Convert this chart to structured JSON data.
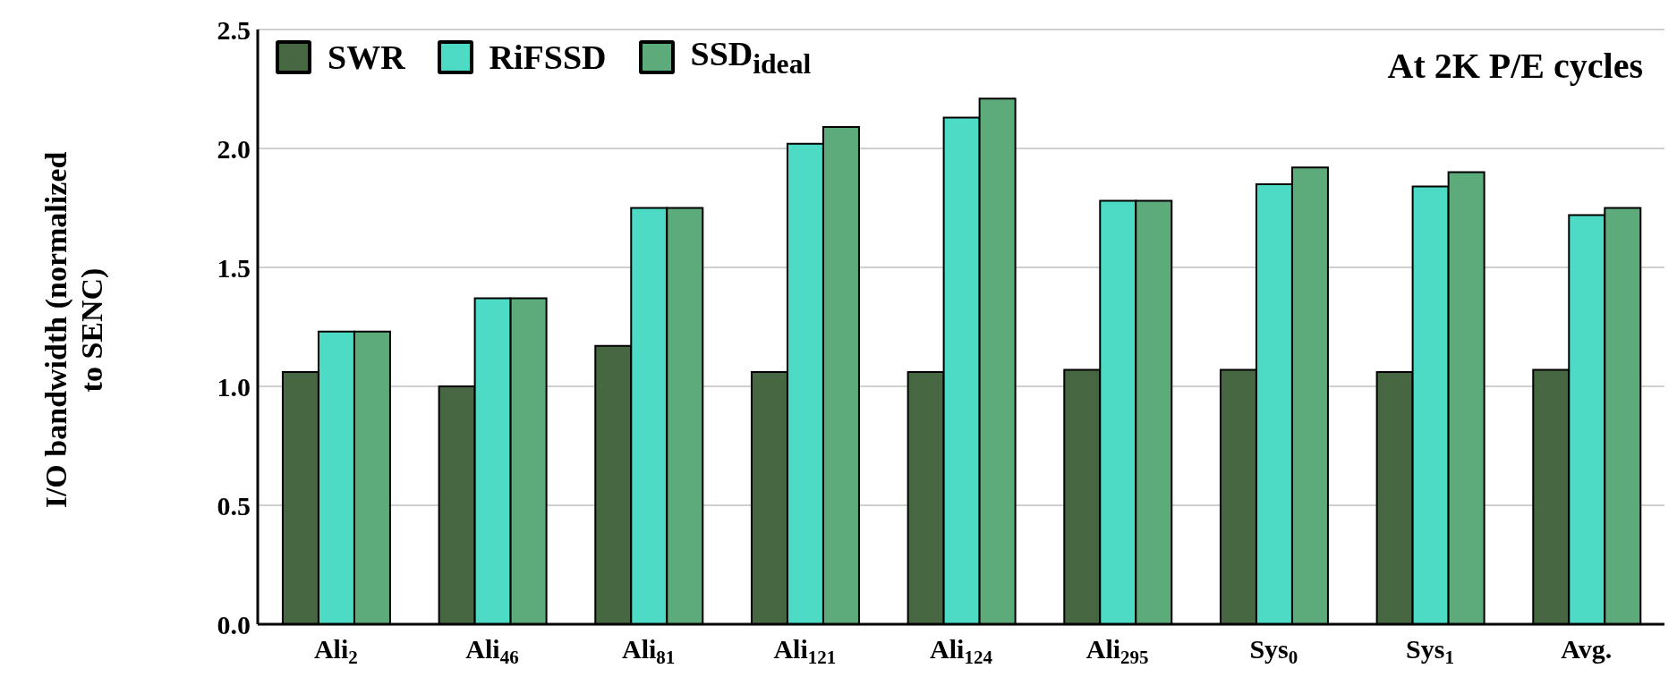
{
  "chart_data": {
    "type": "bar",
    "title": "At 2K P/E cycles",
    "ylabel": "I/O bandwidth (normalized to SENC)",
    "categories": [
      "Ali$_{2}$",
      "Ali$_{46}$",
      "Ali$_{81}$",
      "Ali$_{121}$",
      "Ali$_{124}$",
      "Ali$_{295}$",
      "Sys$_{0}$",
      "Sys$_{1}$",
      "Avg."
    ],
    "series": [
      {
        "name": "SWR",
        "color": "#466741",
        "values": [
          1.06,
          1.0,
          1.17,
          1.06,
          1.06,
          1.07,
          1.07,
          1.06,
          1.07
        ]
      },
      {
        "name": "RiFSSD",
        "color": "#4ddbc6",
        "values": [
          1.23,
          1.37,
          1.75,
          2.02,
          2.13,
          1.78,
          1.85,
          1.84,
          1.72
        ]
      },
      {
        "name": "SSD$_{ideal}$",
        "color": "#5dab7b",
        "values": [
          1.23,
          1.37,
          1.75,
          2.09,
          2.21,
          1.78,
          1.92,
          1.9,
          1.75
        ]
      }
    ],
    "ylim": [
      0,
      2.5
    ],
    "yticks": [
      {
        "value": 0,
        "label": "0.0"
      },
      0.5,
      {
        "value": 1,
        "label": "1.0"
      },
      1.5,
      {
        "value": 2,
        "label": "2.0"
      },
      2.5
    ],
    "grid": "y",
    "legend": "top left"
  }
}
